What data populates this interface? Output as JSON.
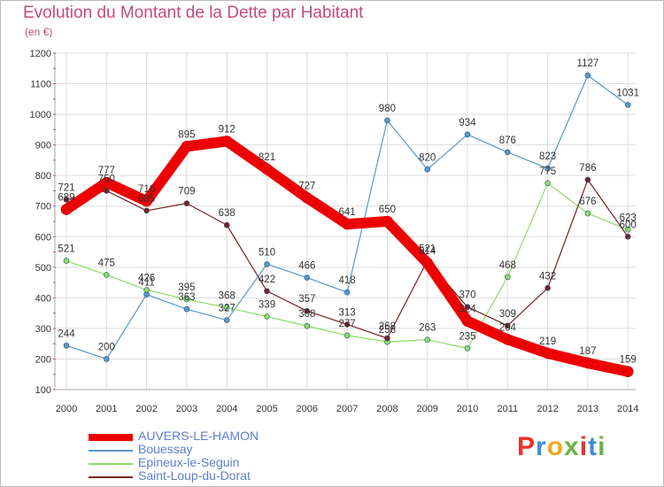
{
  "header": {
    "title": "Evolution du Montant de la Dette par Habitant",
    "unit": "(en €)"
  },
  "logo": {
    "letters": [
      "P",
      "r",
      "o",
      "x",
      "i",
      "t",
      "i"
    ],
    "colors": [
      "#e8332a",
      "#3b8fd4",
      "#f4a81d",
      "#6ab344",
      "#e8332a",
      "#3b8fd4",
      "#6ab344"
    ]
  },
  "chart_data": {
    "type": "line",
    "title": "Evolution du Montant de la Dette par Habitant",
    "ylabel": "(en €)",
    "x": [
      "2000",
      "2001",
      "2002",
      "2003",
      "2004",
      "2005",
      "2006",
      "2007",
      "2008",
      "2009",
      "2010",
      "2011",
      "2012",
      "2013",
      "2014"
    ],
    "ylim": [
      100,
      1200
    ],
    "yticks": [
      "100",
      "200",
      "300",
      "400",
      "500",
      "600",
      "700",
      "800",
      "900",
      "1000",
      "1100",
      "1200"
    ],
    "grid": true,
    "legend": "bottom-left",
    "series": [
      {
        "name": "AUVERS-LE-HAMON",
        "color": "#ee0000",
        "values": [
          689,
          777,
          716,
          895,
          912,
          821,
          727,
          641,
          650,
          514,
          324,
          264,
          219,
          187,
          159
        ],
        "labels": [
          "689",
          "777",
          "716",
          "895",
          "912",
          "821",
          "727",
          "641",
          "650",
          "514",
          "324",
          "264",
          "219",
          "187",
          "159"
        ]
      },
      {
        "name": "Bouessay",
        "color": "#5599cc",
        "values": [
          244,
          200,
          411,
          363,
          327,
          510,
          466,
          418,
          980,
          820,
          934,
          876,
          823,
          1127,
          1031
        ],
        "labels": [
          "244",
          "200",
          "411",
          "363",
          "327",
          "510",
          "466",
          "418",
          "980",
          "820",
          "934",
          "876",
          "823",
          "1127",
          "1031"
        ]
      },
      {
        "name": "Epineux-le-Seguin",
        "color": "#88dd66",
        "values": [
          521,
          475,
          426,
          395,
          368,
          339,
          308,
          277,
          256,
          263,
          235,
          468,
          775,
          676,
          623
        ],
        "labels": [
          "521",
          "475",
          "426",
          "395",
          "368",
          "339",
          "308",
          "277",
          "256",
          "263",
          "235",
          "468",
          "775",
          "676",
          "623"
        ]
      },
      {
        "name": "Saint-Loup-du-Dorat",
        "color": "#772222",
        "values": [
          721,
          750,
          685,
          709,
          638,
          422,
          357,
          313,
          268,
          521,
          370,
          309,
          432,
          786,
          600
        ],
        "labels": [
          "721",
          "750",
          "685",
          "709",
          "638",
          "422",
          "357",
          "313",
          "268",
          "521",
          "370",
          "309",
          "432",
          "786",
          "600"
        ]
      }
    ]
  }
}
